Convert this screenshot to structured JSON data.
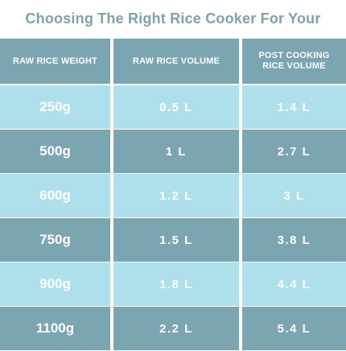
{
  "title": "Choosing The Right Rice Cooker For Your Family",
  "table": {
    "headers": [
      "RAW RICE WEIGHT",
      "RAW RICE VOLUME",
      "POST COOKING RICE VOLUME"
    ],
    "rows": [
      [
        "250g",
        "0.5 L",
        "1.4 L"
      ],
      [
        "500g",
        "1 L",
        "2.7 L"
      ],
      [
        "600g",
        "1.2 L",
        "3 L"
      ],
      [
        "750g",
        "1.5 L",
        "3.8 L"
      ],
      [
        "900g",
        "1.8 L",
        "4.4 L"
      ],
      [
        "1100g",
        "2.2 L",
        "5.4 L"
      ]
    ]
  },
  "colors": {
    "title": "#7fa2ad",
    "header_bg": "#7ba6b1",
    "row_light": "#aee0ec",
    "row_dark": "#7ba6b1",
    "text": "#ffffff"
  }
}
